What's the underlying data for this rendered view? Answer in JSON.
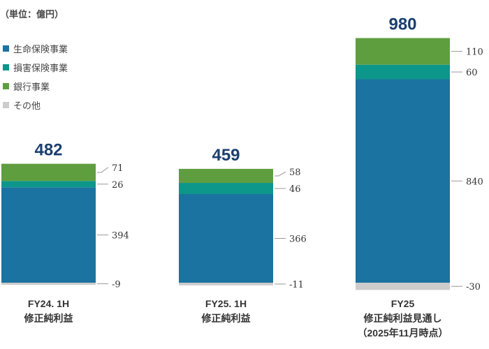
{
  "unit_label": "（単位：億円）",
  "legend": [
    {
      "label": "生命保険事業",
      "color": "#1a73a0"
    },
    {
      "label": "損害保険事業",
      "color": "#0d968a"
    },
    {
      "label": "銀行事業",
      "color": "#5f9e3f"
    },
    {
      "label": "その他",
      "color": "#cccccc"
    }
  ],
  "chart_data": {
    "type": "bar",
    "stacked": true,
    "categories": [
      {
        "line1": "FY24. 1H",
        "line2": "修正純利益",
        "line3": ""
      },
      {
        "line1": "FY25. 1H",
        "line2": "修正純利益",
        "line3": ""
      },
      {
        "line1": "FY25",
        "line2": "修正純利益見通し",
        "line3": "（2025年11月時点）"
      }
    ],
    "totals": [
      "482",
      "459",
      "980"
    ],
    "total_values": [
      482,
      459,
      980
    ],
    "series": [
      {
        "name": "生命保険事業",
        "color": "#1a73a0",
        "values": [
          394,
          366,
          840
        ],
        "labels": [
          "394",
          "366",
          "840"
        ]
      },
      {
        "name": "損害保険事業",
        "color": "#0d968a",
        "values": [
          26,
          46,
          60
        ],
        "labels": [
          "26",
          "46",
          "60"
        ]
      },
      {
        "name": "銀行事業",
        "color": "#5f9e3f",
        "values": [
          71,
          58,
          110
        ],
        "labels": [
          "71",
          "58",
          "110"
        ]
      },
      {
        "name": "その他",
        "color": "#cccccc",
        "values": [
          -9,
          -11,
          -30
        ],
        "labels": [
          "-9",
          "-11",
          "-30"
        ]
      }
    ],
    "total_color": "#1b3f6e"
  }
}
